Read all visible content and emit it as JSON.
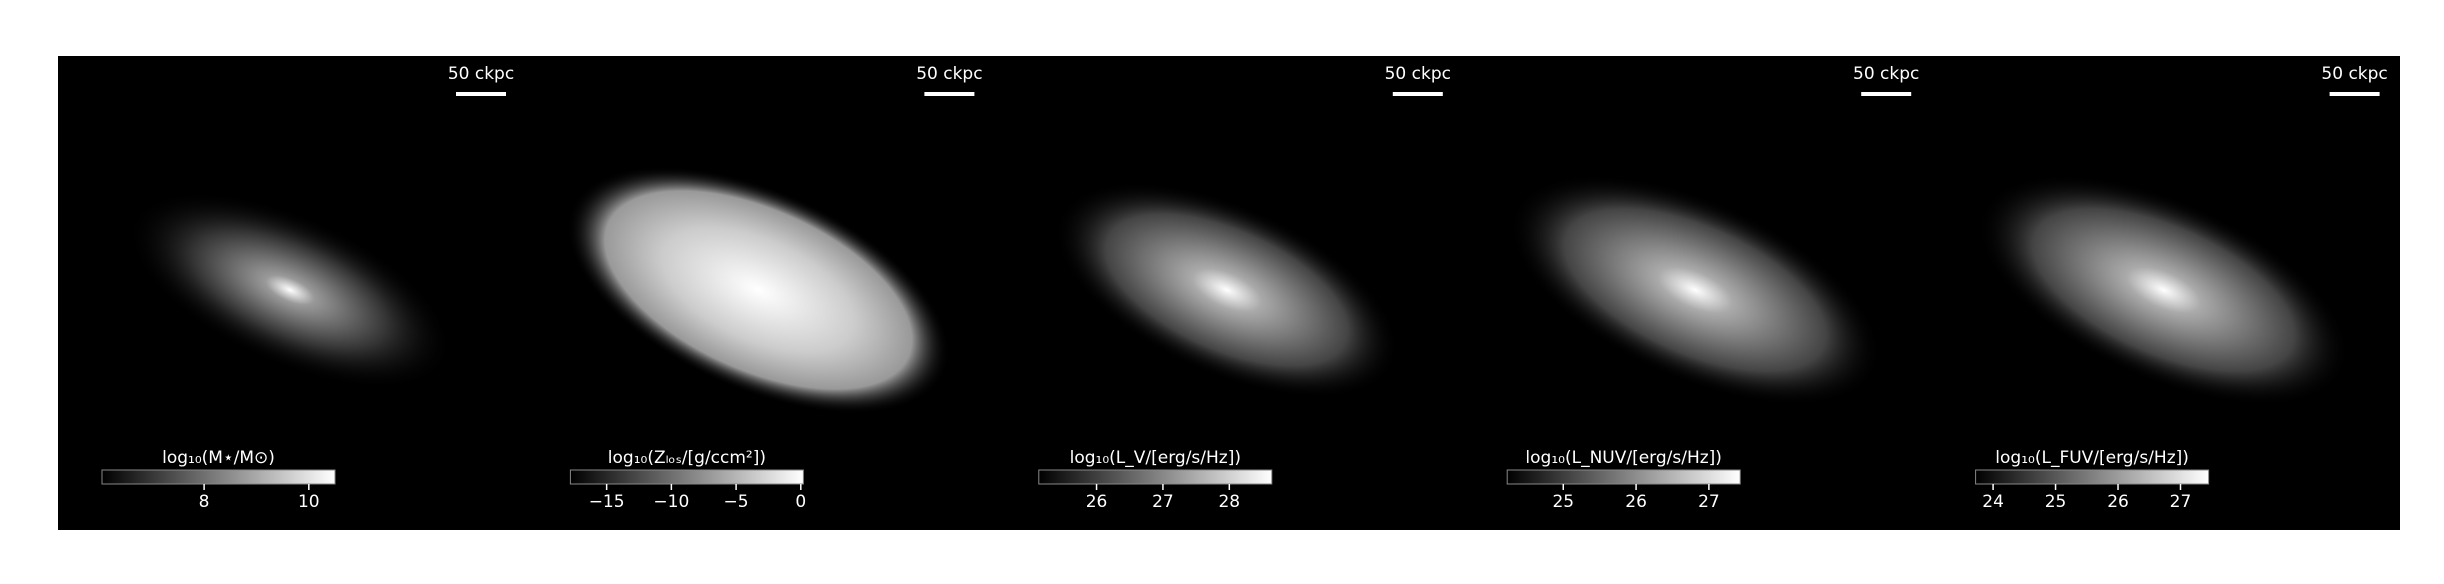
{
  "chart_data": [
    {
      "type": "image",
      "colorbar_label": "log₁₀(M⋆/M⊙)",
      "scale_label": "50 ckpc",
      "cmap": "gray",
      "clim": [
        6.05,
        10.5
      ],
      "cticks": [
        8,
        10
      ]
    },
    {
      "type": "image",
      "colorbar_label": "log₁₀(Zₗₒₛ/[g/ccm²])",
      "scale_label": "50 ckpc",
      "cmap": "gray",
      "clim": [
        -17.8,
        0.2
      ],
      "cticks": [
        {
          "value": -15,
          "label": "−15"
        },
        {
          "value": -10,
          "label": "−10"
        },
        {
          "value": -5,
          "label": "−5"
        },
        0
      ]
    },
    {
      "type": "image",
      "colorbar_label": "log₁₀(L_V/[erg/s/Hz])",
      "scale_label": "50 ckpc",
      "cmap": "gray",
      "clim": [
        25.13,
        28.64
      ],
      "cticks": [
        26,
        27,
        28
      ]
    },
    {
      "type": "image",
      "colorbar_label": "log₁₀(L_NUV/[erg/s/Hz])",
      "scale_label": "50 ckpc",
      "cmap": "gray",
      "clim": [
        24.23,
        27.43
      ],
      "cticks": [
        25,
        26,
        27
      ]
    },
    {
      "type": "image",
      "colorbar_label": "log₁₀(L_FUV/[erg/s/Hz])",
      "scale_label": "50 ckpc",
      "cmap": "gray",
      "clim": [
        23.72,
        27.45
      ],
      "cticks": [
        24,
        25,
        26,
        27
      ]
    }
  ]
}
